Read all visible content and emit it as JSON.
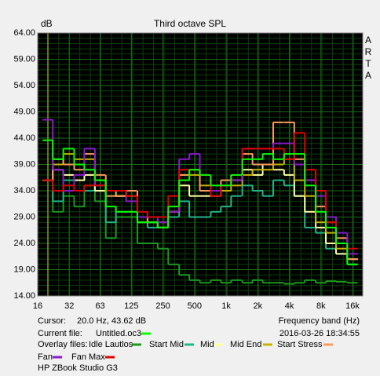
{
  "chart_data": {
    "type": "step",
    "title": "Third octave SPL",
    "ylabel": "dB",
    "xlabel": "Frequency band (Hz)",
    "brand": "ARTA",
    "cursor_label": "Cursor:",
    "cursor_value": "20.0 Hz, 43.62 dB",
    "current_file_label": "Current file:",
    "overlay_files_label": "Overlay files:",
    "timestamp": "2016-03-26  18:34:55",
    "device": "HP ZBook Studio G3",
    "log_x": true,
    "grid": true,
    "xlim": [
      16,
      20000
    ],
    "ylim": [
      14,
      64
    ],
    "xticks": [
      16,
      32,
      63,
      125,
      250,
      500,
      {
        "value": 1000,
        "label": "1k"
      },
      {
        "value": 2000,
        "label": "2k"
      },
      {
        "value": 4000,
        "label": "4k"
      },
      {
        "value": 8000,
        "label": "8k"
      },
      {
        "value": 16000,
        "label": "16k"
      }
    ],
    "yticks": [
      {
        "value": 14,
        "label": "14.00"
      },
      {
        "value": 19,
        "label": "19.00"
      },
      {
        "value": 24,
        "label": "24.00"
      },
      {
        "value": 29,
        "label": "29.00"
      },
      {
        "value": 34,
        "label": "34.00"
      },
      {
        "value": 39,
        "label": "39.00"
      },
      {
        "value": 44,
        "label": "44.00"
      },
      {
        "value": 49,
        "label": "49.00"
      },
      {
        "value": 54,
        "label": "54.00"
      },
      {
        "value": 59,
        "label": "59.00"
      },
      {
        "value": 64,
        "label": "64.00"
      }
    ],
    "x": [
      20,
      25,
      31.5,
      40,
      50,
      63,
      80,
      100,
      125,
      160,
      200,
      250,
      315,
      400,
      500,
      630,
      800,
      1000,
      1250,
      1600,
      2000,
      2500,
      3150,
      4000,
      5000,
      6300,
      8000,
      10000,
      12500,
      16000
    ],
    "series": [
      {
        "name": "Untitled.oc3",
        "color": "#00ff00",
        "values": [
          43.6,
          40,
          42,
          39,
          38,
          36,
          31,
          30,
          30,
          28,
          28,
          27,
          31,
          36,
          38,
          37,
          35,
          35,
          37,
          40,
          40,
          41,
          40,
          41,
          41,
          35,
          30,
          27,
          24,
          20
        ]
      },
      {
        "name": "Idle Lautlos",
        "color": "#1a9a1a",
        "values": [
          36,
          30,
          33,
          31,
          35,
          32,
          25,
          29,
          29,
          24,
          24,
          23,
          20,
          18,
          17,
          16.5,
          17,
          16.5,
          17,
          16.5,
          17,
          16.5,
          16.5,
          16.3,
          16.5,
          17,
          16.5,
          16.8,
          16.7,
          16.5
        ]
      },
      {
        "name": "Start Mid",
        "color": "#20b888",
        "values": [
          36,
          32,
          36,
          34,
          34,
          35,
          28,
          30,
          30,
          28,
          27,
          27,
          29,
          32,
          29,
          29,
          30,
          31,
          33,
          35,
          34,
          33,
          36,
          35,
          33,
          27,
          26,
          23,
          22,
          20
        ]
      },
      {
        "name": "Mid",
        "color": "#ffffa0",
        "values": [
          36,
          38,
          37,
          36,
          37,
          34,
          34,
          33,
          33,
          28,
          28,
          27,
          30,
          35,
          33,
          33,
          33,
          35,
          36,
          38,
          37,
          39,
          38,
          37,
          33,
          30,
          27,
          24,
          22,
          21
        ]
      },
      {
        "name": "Mid End",
        "color": "#c8b400",
        "values": [
          36,
          39,
          41,
          40,
          40,
          36,
          34,
          33,
          34,
          29,
          28,
          28,
          30,
          37,
          37,
          35,
          34,
          34,
          35,
          37,
          38,
          38,
          39,
          40,
          36,
          33,
          28,
          26,
          23,
          21
        ]
      },
      {
        "name": "Start Stress",
        "color": "#ff9a5a",
        "values": [
          36,
          40,
          39,
          38,
          41,
          37,
          33,
          33,
          34,
          29,
          28,
          27,
          30,
          37,
          38,
          34,
          34,
          36,
          36,
          41,
          39,
          39,
          47,
          47,
          40,
          36,
          31,
          28,
          25,
          21
        ]
      },
      {
        "name": "Fan",
        "color": "#8a1ad0",
        "values": [
          47.5,
          38,
          34,
          37,
          42,
          35,
          34,
          34,
          32,
          29,
          29,
          28,
          30,
          40,
          41,
          37,
          34,
          35,
          36,
          42,
          42,
          42,
          43,
          43,
          39,
          36,
          33,
          29,
          26,
          22
        ]
      },
      {
        "name": "Fan Max",
        "color": "#e00000",
        "values": [
          36,
          34,
          35,
          34,
          35,
          35,
          34,
          34,
          33,
          30,
          29,
          29,
          33,
          38,
          38,
          37,
          33,
          35,
          37,
          42,
          42,
          42,
          42,
          40,
          45,
          38,
          34,
          28,
          24,
          23
        ]
      }
    ]
  }
}
